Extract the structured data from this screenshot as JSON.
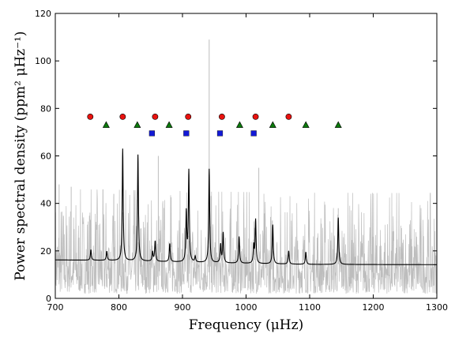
{
  "chart_data": {
    "type": "line",
    "xlabel": "Frequency (μHz)",
    "ylabel": "Power spectral density (ppm² μHz⁻¹)",
    "xlim": [
      700,
      1300
    ],
    "ylim": [
      0,
      120
    ],
    "x_ticks": [
      700,
      800,
      900,
      1000,
      1100,
      1200,
      1300
    ],
    "y_ticks": [
      0,
      20,
      40,
      60,
      80,
      100,
      120
    ],
    "grid": false,
    "colors": {
      "raw_spectrum": "#bdbdbd",
      "model_fit": "#000000",
      "circle_marker": "#e8120f",
      "triangle_marker": "#0b7a0b",
      "square_marker": "#1219d6"
    },
    "series": [
      {
        "key": "raw",
        "style": "noisy-background",
        "baseline": [
          [
            700,
            16.0
          ],
          [
            780,
            15.8
          ],
          [
            860,
            15.4
          ],
          [
            940,
            15.0
          ],
          [
            1020,
            14.7
          ],
          [
            1100,
            14.5
          ],
          [
            1300,
            14.3
          ]
        ],
        "notable_spikes": [
          [
            706,
            48
          ],
          [
            725,
            47
          ],
          [
            792,
            44
          ],
          [
            862,
            60
          ],
          [
            942,
            109
          ],
          [
            1020,
            55
          ],
          [
            1145,
            38
          ]
        ]
      },
      {
        "key": "model",
        "style": "lorentzian-peaks",
        "baseline": [
          [
            700,
            16.2
          ],
          [
            780,
            16.0
          ],
          [
            860,
            15.5
          ],
          [
            940,
            15.0
          ],
          [
            1020,
            14.6
          ],
          [
            1100,
            14.3
          ],
          [
            1300,
            14.2
          ]
        ],
        "peaks": [
          [
            756,
            20.5
          ],
          [
            781,
            19.8
          ],
          [
            806,
            63
          ],
          [
            830,
            60.5
          ],
          [
            853,
            19.5
          ],
          [
            857,
            24
          ],
          [
            880,
            23
          ],
          [
            906,
            36
          ],
          [
            910,
            53.5
          ],
          [
            920,
            17.5
          ],
          [
            942,
            54.5
          ],
          [
            960,
            22.5
          ],
          [
            964,
            27.5
          ],
          [
            989,
            26
          ],
          [
            1012,
            22
          ],
          [
            1015,
            33
          ],
          [
            1042,
            31
          ],
          [
            1067,
            20
          ],
          [
            1094,
            19.5
          ],
          [
            1145,
            34
          ]
        ]
      }
    ],
    "markers": [
      {
        "shape": "circle",
        "y": 76.5,
        "x": [
          755,
          806,
          857,
          909,
          962,
          1015,
          1067
        ]
      },
      {
        "shape": "triangle",
        "y": 73,
        "x": [
          780,
          829,
          879,
          990,
          1042,
          1094,
          1145
        ]
      },
      {
        "shape": "square",
        "y": 69.5,
        "x": [
          852,
          906,
          959,
          1012
        ]
      }
    ]
  }
}
